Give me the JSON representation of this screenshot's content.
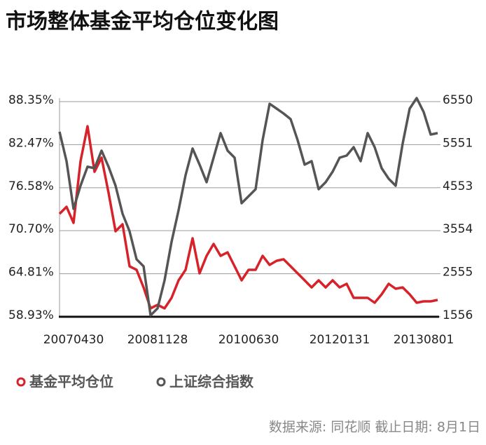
{
  "chart_data": {
    "type": "line",
    "title": "市场整体基金平均仓位变化图",
    "source": "数据来源: 同花顺 截止日期: 8月1日",
    "categories": [
      null,
      null,
      "20070430",
      null,
      null,
      null,
      null,
      null,
      null,
      null,
      null,
      null,
      null,
      null,
      "20081128",
      null,
      null,
      null,
      null,
      null,
      null,
      null,
      null,
      null,
      null,
      null,
      null,
      "20100630",
      null,
      null,
      null,
      null,
      null,
      null,
      null,
      null,
      null,
      null,
      null,
      null,
      "20120131",
      null,
      null,
      null,
      null,
      null,
      null,
      null,
      null,
      null,
      null,
      null,
      "20130801",
      null,
      null
    ],
    "series": [
      {
        "name": "基金平均仓位",
        "color": "#d7222a",
        "axis": "y",
        "values": [
          73.01,
          73.97,
          71.77,
          80.2,
          84.99,
          78.76,
          80.68,
          75.89,
          70.62,
          71.58,
          65.83,
          65.35,
          62.95,
          60.08,
          60.56,
          60.08,
          61.52,
          63.91,
          65.35,
          69.66,
          64.87,
          67.26,
          68.89,
          67.26,
          67.74,
          65.83,
          63.91,
          65.35,
          65.35,
          67.26,
          66.02,
          66.59,
          66.79,
          65.83,
          64.87,
          63.91,
          62.95,
          63.91,
          62.95,
          63.91,
          62.95,
          63.43,
          61.52,
          61.52,
          61.52,
          60.85,
          62.0,
          63.43,
          62.76,
          62.95,
          62.0,
          60.85,
          61.04,
          61.04,
          61.23
        ]
      },
      {
        "name": "上证综合指数",
        "color": "#555555",
        "axis": "y2",
        "values": [
          5851,
          5168,
          4061,
          4598,
          5038,
          5005,
          5412,
          5038,
          4598,
          3948,
          3541,
          2890,
          2727,
          1589,
          1751,
          2402,
          3297,
          4029,
          4843,
          5461,
          5087,
          4680,
          5249,
          5819,
          5412,
          5249,
          4192,
          4354,
          4517,
          5656,
          6500,
          6388,
          6274,
          6144,
          5656,
          5087,
          5168,
          4517,
          4680,
          4924,
          5249,
          5298,
          5493,
          5168,
          5819,
          5493,
          5005,
          4761,
          4598,
          5575,
          6388,
          6632,
          6307,
          5786,
          5819
        ]
      }
    ],
    "ylim": [
      58.93,
      88.35
    ],
    "yticks": [
      {
        "value": 58.93,
        "label": "58.93%"
      },
      {
        "value": 64.81,
        "label": "64.81%"
      },
      {
        "value": 70.7,
        "label": "70.70%"
      },
      {
        "value": 76.58,
        "label": "76.58%"
      },
      {
        "value": 82.47,
        "label": "82.47%"
      },
      {
        "value": 88.35,
        "label": "88.35%"
      }
    ],
    "y2lim": [
      1556,
      6550
    ],
    "y2ticks": [
      1556,
      2555,
      3554,
      4553,
      5551,
      6550
    ],
    "grid": true
  }
}
